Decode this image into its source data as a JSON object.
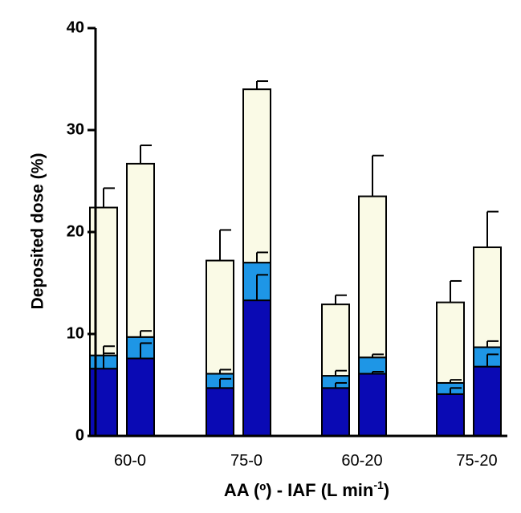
{
  "chart_data": {
    "type": "bar",
    "stacked": true,
    "xlabel_main": "AA (º) - IAF (L min",
    "xlabel_sup": "-1",
    "xlabel_close": ")",
    "ylabel": "Deposited dose (%)",
    "ylim": [
      0,
      40
    ],
    "yticks": [
      "0",
      "10",
      "20",
      "30",
      "40"
    ],
    "categories": [
      "60-0",
      "75-0",
      "60-20",
      "75-20"
    ],
    "bars_per_category": 2,
    "grid": false,
    "legend": "none",
    "colors": {
      "bottom": "#0a0ab4",
      "middle": "#1e96e6",
      "top": "#fafae6",
      "edge": "#000000"
    },
    "series": [
      {
        "values": [
          [
            6.6,
            7.6
          ],
          [
            4.7,
            13.3
          ],
          [
            4.7,
            6.1
          ],
          [
            4.1,
            6.8
          ]
        ],
        "errors": [
          [
            1.5,
            1.5
          ],
          [
            0.9,
            2.5
          ],
          [
            0.5,
            0.2
          ],
          [
            0.6,
            1.2
          ]
        ]
      },
      {
        "values": [
          [
            1.3,
            2.1
          ],
          [
            1.4,
            3.7
          ],
          [
            1.2,
            1.6
          ],
          [
            1.1,
            1.9
          ]
        ],
        "errors": [
          [
            0.9,
            0.6
          ],
          [
            0.4,
            1.0
          ],
          [
            0.5,
            0.3
          ],
          [
            0.3,
            0.6
          ]
        ]
      },
      {
        "values": [
          [
            14.5,
            17.0
          ],
          [
            11.1,
            17.0
          ],
          [
            7.0,
            15.8
          ],
          [
            7.9,
            9.8
          ]
        ],
        "errors": [
          [
            1.9,
            1.8
          ],
          [
            3.0,
            0.8
          ],
          [
            0.9,
            4.0
          ],
          [
            2.1,
            3.5
          ]
        ]
      }
    ]
  }
}
